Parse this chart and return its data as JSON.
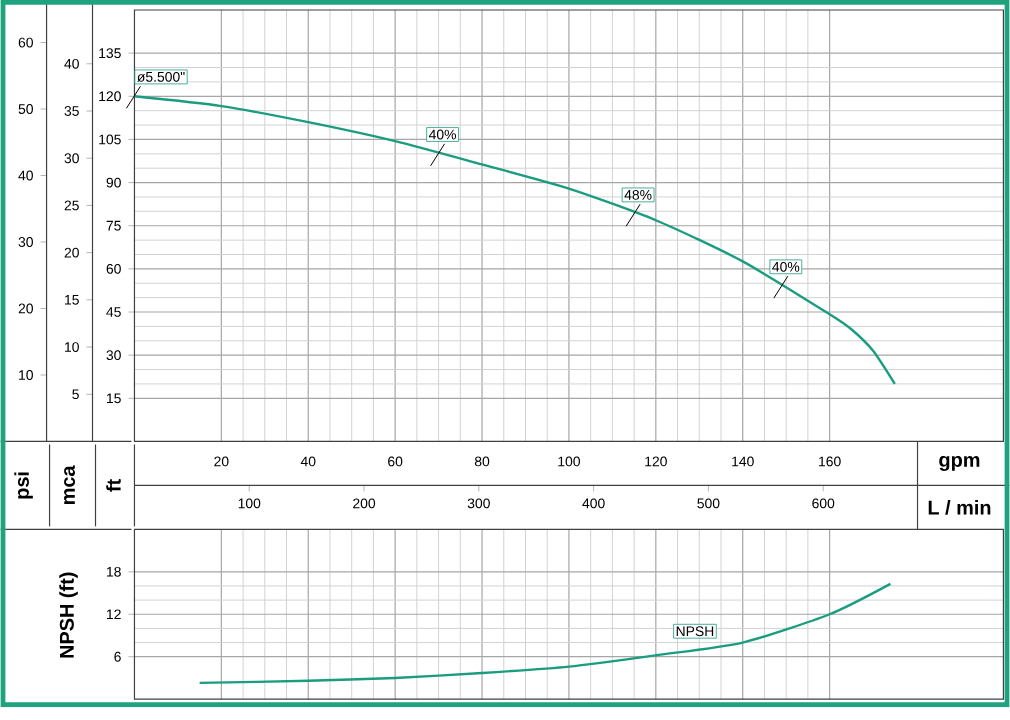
{
  "chart_data": [
    {
      "type": "line",
      "xlabel": "gpm",
      "x2label": "L / min",
      "ylabel": "ft",
      "y2label": "mca",
      "y3label": "psi",
      "xlim": [
        0,
        200
      ],
      "xticks": [
        20,
        40,
        60,
        80,
        100,
        120,
        140,
        160
      ],
      "x2lim": [
        0,
        757
      ],
      "x2ticks": [
        100,
        200,
        300,
        400,
        500,
        600
      ],
      "ylim": [
        0,
        150
      ],
      "yticks": [
        15,
        30,
        45,
        60,
        75,
        90,
        105,
        120,
        135
      ],
      "y2lim": [
        0,
        45.7
      ],
      "y2ticks": [
        5,
        10,
        15,
        20,
        25,
        30,
        35,
        40
      ],
      "y3lim": [
        0,
        64.9
      ],
      "y3ticks": [
        10,
        20,
        30,
        40,
        50,
        60
      ],
      "grid": true,
      "series": [
        {
          "color": "#1a9c7f",
          "x": [
            0,
            20,
            40,
            60,
            80,
            100,
            120,
            140,
            160,
            165,
            170,
            175
          ],
          "values": [
            120,
            116.6,
            111,
            104.4,
            96.3,
            87.9,
            76.9,
            62.6,
            44.2,
            39,
            31.5,
            20
          ]
        }
      ],
      "annotations": [
        {
          "text": "ø5.500\"",
          "x": 0,
          "y": 120
        },
        {
          "text": "40%",
          "x": 70,
          "y": 100
        },
        {
          "text": "48%",
          "x": 115,
          "y": 79
        },
        {
          "text": "40%",
          "x": 149,
          "y": 54
        }
      ]
    },
    {
      "type": "line",
      "ylabel": "NPSH (ft)",
      "xlim": [
        0,
        200
      ],
      "xticks": [
        20,
        40,
        60,
        80,
        100,
        120,
        140,
        160
      ],
      "ylim": [
        0,
        24
      ],
      "yticks": [
        6,
        12,
        18
      ],
      "tick_labels": "y",
      "grid": true,
      "series": [
        {
          "color": "#1a9c7f",
          "x": [
            15,
            40,
            60,
            80,
            100,
            120,
            140,
            160,
            174
          ],
          "values": [
            2.3,
            2.6,
            3.0,
            3.7,
            4.6,
            6.2,
            8.0,
            12.0,
            16.3
          ]
        }
      ],
      "annotations": [
        {
          "text": "NPSH",
          "x": 129,
          "y": 9.6
        }
      ]
    }
  ]
}
